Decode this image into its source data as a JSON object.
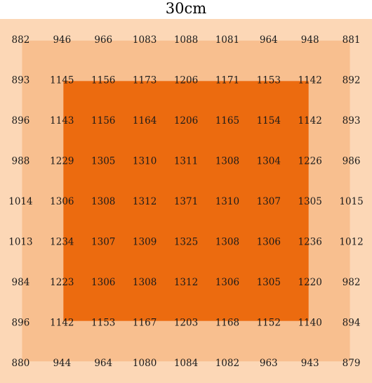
{
  "colors": {
    "background": "#ffffff",
    "outer": "#fcd7b6",
    "middle": "#f8bf8f",
    "inner": "#ec6b0f",
    "text": "#1a1a1a"
  },
  "chart_data": {
    "type": "heatmap",
    "title": "30cm",
    "rows": 9,
    "cols": 9,
    "zones": [
      {
        "name": "outer",
        "row_range": [
          0,
          8
        ],
        "col_range": [
          0,
          8
        ]
      },
      {
        "name": "middle",
        "row_range": [
          1,
          7
        ],
        "col_range": [
          1,
          7
        ]
      },
      {
        "name": "inner",
        "row_range": [
          2,
          6
        ],
        "col_range": [
          2,
          6
        ]
      }
    ],
    "values": [
      [
        882,
        946,
        966,
        1083,
        1088,
        1081,
        964,
        948,
        881
      ],
      [
        893,
        1145,
        1156,
        1173,
        1206,
        1171,
        1153,
        1142,
        892
      ],
      [
        896,
        1143,
        1156,
        1164,
        1206,
        1165,
        1154,
        1142,
        893
      ],
      [
        988,
        1229,
        1305,
        1310,
        1311,
        1308,
        1304,
        1226,
        986
      ],
      [
        1014,
        1306,
        1308,
        1312,
        1371,
        1310,
        1307,
        1305,
        1015
      ],
      [
        1013,
        1234,
        1307,
        1309,
        1325,
        1308,
        1306,
        1236,
        1012
      ],
      [
        984,
        1223,
        1306,
        1308,
        1312,
        1306,
        1305,
        1220,
        982
      ],
      [
        896,
        1142,
        1153,
        1167,
        1203,
        1168,
        1152,
        1140,
        894
      ],
      [
        880,
        944,
        964,
        1080,
        1084,
        1082,
        963,
        943,
        879
      ]
    ]
  }
}
